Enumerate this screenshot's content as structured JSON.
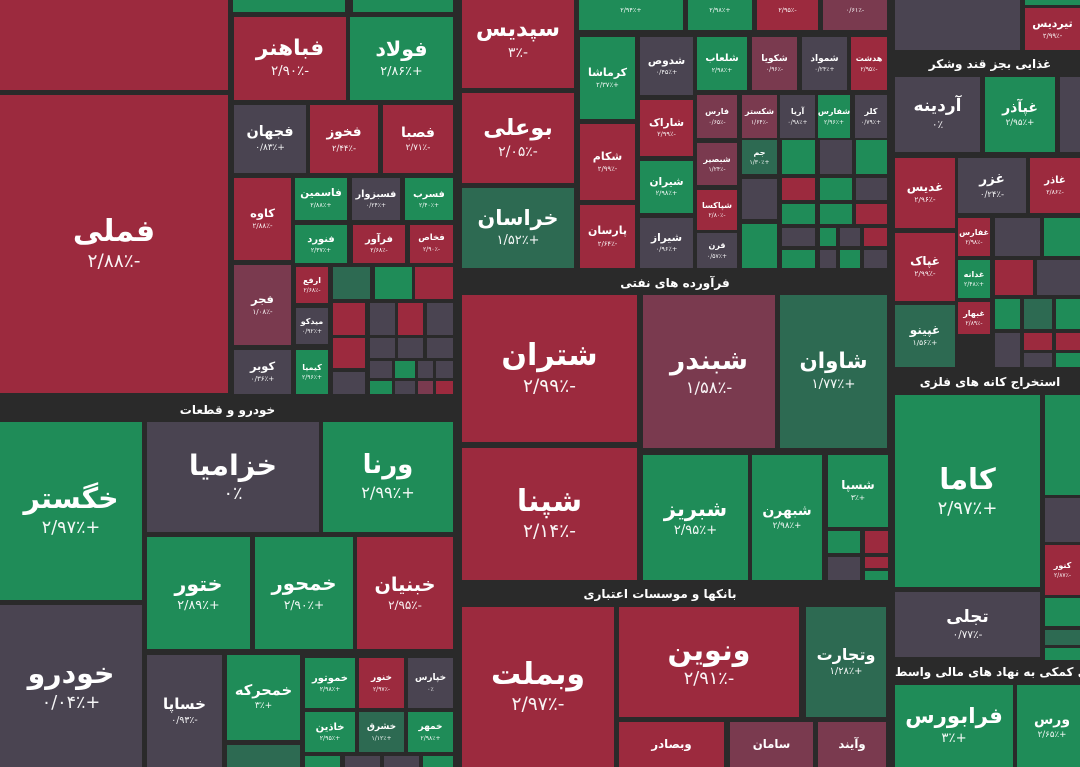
{
  "colors": {
    "red": "#9c2a3e",
    "green": "#1f8c58",
    "gray": "#4a4451",
    "mauve": "#7a3a4f",
    "dkgreen": "#2d6a52",
    "background": "#2a2a2a"
  },
  "sectors": [
    {
      "label": "خودرو و قطعات"
    },
    {
      "label": "فرآورده های نفتی"
    },
    {
      "label": "بانکها و موسسات اعتباری"
    },
    {
      "label": "غذایی بجز قند وشکر"
    },
    {
      "label": "استخراج کانه های فلزی"
    },
    {
      "label": "های کمکی به نهاد های مالی واسط"
    }
  ],
  "tiles": [
    {
      "symbol": "",
      "change": "",
      "tone": "red"
    },
    {
      "symbol": "فملی",
      "change": "-۲/۸۸٪",
      "tone": "red"
    },
    {
      "symbol": "",
      "change": "",
      "tone": "green"
    },
    {
      "symbol": "",
      "change": "",
      "tone": "green"
    },
    {
      "symbol": "فباهنر",
      "change": "-۲/۹۰٪",
      "tone": "red"
    },
    {
      "symbol": "فولاد",
      "change": "+۲/۸۶٪",
      "tone": "green"
    },
    {
      "symbol": "فجهان",
      "change": "+۰/۸۳٪",
      "tone": "gray"
    },
    {
      "symbol": "فخوز",
      "change": "-۲/۴۴٪",
      "tone": "red"
    },
    {
      "symbol": "فصبا",
      "change": "-۲/۷۱٪",
      "tone": "red"
    },
    {
      "symbol": "کاوه",
      "change": "-۲/۸۸٪",
      "tone": "red"
    },
    {
      "symbol": "فاسمین",
      "change": "+۲/۸۸٪",
      "tone": "green"
    },
    {
      "symbol": "فسبزوار",
      "change": "+۰/۲۴٪",
      "tone": "gray"
    },
    {
      "symbol": "فسرب",
      "change": "+۲/۴۰٪",
      "tone": "green"
    },
    {
      "symbol": "فنورد",
      "change": "+۲/۳۷٪",
      "tone": "green"
    },
    {
      "symbol": "فرآور",
      "change": "-۲/۶۸٪",
      "tone": "red"
    },
    {
      "symbol": "فخاص",
      "change": "-۲/۹۰٪",
      "tone": "red"
    },
    {
      "symbol": "فجر",
      "change": "-۱/۰۸٪",
      "tone": "mauve"
    },
    {
      "symbol": "ارفع",
      "change": "-۲/۶۸٪",
      "tone": "red"
    },
    {
      "symbol": "میدکو",
      "change": "+۰/۹۲٪",
      "tone": "gray"
    },
    {
      "symbol": "کوبر",
      "change": "+۰/۳۶٪",
      "tone": "gray"
    },
    {
      "symbol": "کیمیا",
      "change": "+۲/۹۶٪",
      "tone": "green"
    },
    {
      "symbol": "خگستر",
      "change": "+۲/۹۷٪",
      "tone": "green"
    },
    {
      "symbol": "خزامیا",
      "change": "۰٪",
      "tone": "gray"
    },
    {
      "symbol": "ورنا",
      "change": "+۲/۹۹٪",
      "tone": "green"
    },
    {
      "symbol": "خودرو",
      "change": "+۰/۰۴٪",
      "tone": "gray"
    },
    {
      "symbol": "ختور",
      "change": "+۲/۸۹٪",
      "tone": "green"
    },
    {
      "symbol": "خمحور",
      "change": "+۲/۹۰٪",
      "tone": "green"
    },
    {
      "symbol": "خبنیان",
      "change": "-۲/۹۵٪",
      "tone": "red"
    },
    {
      "symbol": "خساپا",
      "change": "-۰/۹۳٪",
      "tone": "gray"
    },
    {
      "symbol": "خمحرکه",
      "change": "+۳٪",
      "tone": "green"
    },
    {
      "symbol": "خموتور",
      "change": "+۲/۹۸٪",
      "tone": "green"
    },
    {
      "symbol": "خنور",
      "change": "-۲/۹۷٪",
      "tone": "red"
    },
    {
      "symbol": "خپارس",
      "change": "۰٪",
      "tone": "gray"
    },
    {
      "symbol": "خاذین",
      "change": "+۲/۹۵٪",
      "tone": "green"
    },
    {
      "symbol": "خشرق",
      "change": "+۱/۱۲٪",
      "tone": "dkgreen"
    },
    {
      "symbol": "خمهر",
      "change": "+۲/۹۸٪",
      "tone": "green"
    },
    {
      "symbol": "سپدیس",
      "change": "-۳٪",
      "tone": "red"
    },
    {
      "symbol": "بوعلی",
      "change": "-۲/۰۵٪",
      "tone": "red"
    },
    {
      "symbol": "خراسان",
      "change": "+۱/۵۲٪",
      "tone": "dkgreen"
    },
    {
      "symbol": "",
      "change": "+۲/۹۴٪",
      "tone": "green"
    },
    {
      "symbol": "",
      "change": "+۲/۹۸٪",
      "tone": "green"
    },
    {
      "symbol": "",
      "change": "-۲/۹۵٪",
      "tone": "red"
    },
    {
      "symbol": "",
      "change": "-۰/۶۱٪",
      "tone": "mauve"
    },
    {
      "symbol": "کرماشا",
      "change": "+۲/۳۷٪",
      "tone": "green"
    },
    {
      "symbol": "شدوص",
      "change": "+۰/۴۵٪",
      "tone": "gray"
    },
    {
      "symbol": "شلعاب",
      "change": "+۲/۹۸٪",
      "tone": "green"
    },
    {
      "symbol": "شکویا",
      "change": "-۰/۹۶٪",
      "tone": "mauve"
    },
    {
      "symbol": "شمواد",
      "change": "+۰/۲۴٪",
      "tone": "gray"
    },
    {
      "symbol": "هدشت",
      "change": "-۲/۹۵٪",
      "tone": "red"
    },
    {
      "symbol": "شکام",
      "change": "-۲/۹۹٪",
      "tone": "red"
    },
    {
      "symbol": "پارسان",
      "change": "-۲/۶۴٪",
      "tone": "red"
    },
    {
      "symbol": "شاراک",
      "change": "-۲/۹۹٪",
      "tone": "red"
    },
    {
      "symbol": "شیران",
      "change": "+۲/۹۸٪",
      "tone": "green"
    },
    {
      "symbol": "شیراز",
      "change": "+۰/۹۶٪",
      "tone": "gray"
    },
    {
      "symbol": "فارس",
      "change": "-۰/۶۵٪",
      "tone": "mauve"
    },
    {
      "symbol": "شکستر",
      "change": "-۱/۶۴٪",
      "tone": "mauve"
    },
    {
      "symbol": "آریا",
      "change": "+۰/۹۸٪",
      "tone": "gray"
    },
    {
      "symbol": "شفارس",
      "change": "+۲/۹۶٪",
      "tone": "green"
    },
    {
      "symbol": "کلر",
      "change": "+۰/۷۹٪",
      "tone": "gray"
    },
    {
      "symbol": "شبصیر",
      "change": "-۱/۲۴٪",
      "tone": "mauve"
    },
    {
      "symbol": "شپاکسا",
      "change": "-۲/۸۰٪",
      "tone": "red"
    },
    {
      "symbol": "قرن",
      "change": "+۰/۵۷٪",
      "tone": "gray"
    },
    {
      "symbol": "جم",
      "change": "+۱/۳۰٪",
      "tone": "dkgreen"
    },
    {
      "symbol": "شتران",
      "change": "-۲/۹۹٪",
      "tone": "red"
    },
    {
      "symbol": "شبندر",
      "change": "-۱/۵۸٪",
      "tone": "mauve"
    },
    {
      "symbol": "شاوان",
      "change": "+۱/۷۷٪",
      "tone": "dkgreen"
    },
    {
      "symbol": "شپنا",
      "change": "-۲/۱۴٪",
      "tone": "red"
    },
    {
      "symbol": "شبریز",
      "change": "+۲/۹۵٪",
      "tone": "green"
    },
    {
      "symbol": "شبهرن",
      "change": "+۲/۹۸٪",
      "tone": "green"
    },
    {
      "symbol": "شسپا",
      "change": "+۳٪",
      "tone": "green"
    },
    {
      "symbol": "وبملت",
      "change": "-۲/۹۷٪",
      "tone": "red"
    },
    {
      "symbol": "ونوین",
      "change": "-۲/۹۱٪",
      "tone": "red"
    },
    {
      "symbol": "وتجارت",
      "change": "+۱/۲۸٪",
      "tone": "dkgreen"
    },
    {
      "symbol": "وبصادر",
      "change": "",
      "tone": "red"
    },
    {
      "symbol": "سامان",
      "change": "",
      "tone": "mauve"
    },
    {
      "symbol": "وآیند",
      "change": "",
      "tone": "mauve"
    },
    {
      "symbol": "",
      "change": "",
      "tone": "gray"
    },
    {
      "symbol": "تیردیس",
      "change": "-۲/۹۹٪",
      "tone": "red"
    },
    {
      "symbol": "آردینه",
      "change": "۰٪",
      "tone": "gray"
    },
    {
      "symbol": "غپآذر",
      "change": "+۲/۹۵٪",
      "tone": "green"
    },
    {
      "symbol": "غدیس",
      "change": "-۲/۹۶٪",
      "tone": "red"
    },
    {
      "symbol": "غزر",
      "change": "-۰/۲۴٪",
      "tone": "gray"
    },
    {
      "symbol": "غاذر",
      "change": "-۲/۸۶٪",
      "tone": "red"
    },
    {
      "symbol": "غپاک",
      "change": "-۲/۹۹٪",
      "tone": "red"
    },
    {
      "symbol": "غفارس",
      "change": "-۲/۹۸٪",
      "tone": "red"
    },
    {
      "symbol": "غدانه",
      "change": "+۲/۴۸٪",
      "tone": "green"
    },
    {
      "symbol": "غبهار",
      "change": "-۲/۸۹٪",
      "tone": "red"
    },
    {
      "symbol": "غپینو",
      "change": "+۱/۵۶٪",
      "tone": "dkgreen"
    },
    {
      "symbol": "کاما",
      "change": "+۲/۹۷٪",
      "tone": "green"
    },
    {
      "symbol": "کنور",
      "change": "-۲/۸۷٪",
      "tone": "red"
    },
    {
      "symbol": "تجلی",
      "change": "-۰/۷۷٪",
      "tone": "gray"
    },
    {
      "symbol": "فرابورس",
      "change": "+۳٪",
      "tone": "green"
    },
    {
      "symbol": "ورس",
      "change": "+۲/۶۵٪",
      "tone": "green"
    }
  ],
  "small_tiles": [
    "dkgreen",
    "green",
    "red",
    "red",
    "gray",
    "red",
    "gray",
    "red",
    "gray",
    "gray",
    "gray",
    "gray",
    "gray",
    "green",
    "gray",
    "gray",
    "green",
    "gray",
    "mauve",
    "red",
    "dkgreen",
    "green",
    "gray",
    "gray",
    "green",
    "green",
    "gray",
    "green",
    "gray",
    "red",
    "green",
    "gray",
    "green",
    "green",
    "red",
    "green",
    "gray",
    "green",
    "gray",
    "red",
    "green",
    "gray",
    "green",
    "gray",
    "green",
    "red",
    "gray",
    "red",
    "green",
    "gray",
    "green",
    "gray",
    "green",
    "red",
    "gray",
    "green",
    "dkgreen",
    "green",
    "gray",
    "red",
    "red",
    "gray",
    "green",
    "green",
    "gray",
    "green",
    "dkgreen",
    "green",
    "gray"
  ]
}
